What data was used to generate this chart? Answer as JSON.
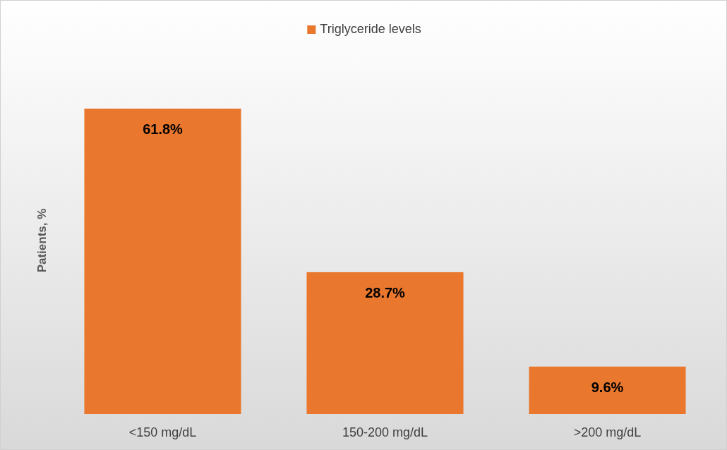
{
  "chart_data": {
    "type": "bar",
    "ylabel": "Patients, %",
    "categories": [
      "<150 mg/dL",
      "150-200 mg/dL",
      ">200 mg/dL"
    ],
    "series": [
      {
        "name": "Triglyceride levels",
        "color": "#e9772e",
        "values": [
          61.8,
          28.7,
          9.6
        ],
        "value_labels": [
          "61.8%",
          "28.7%",
          "9.6%"
        ]
      }
    ],
    "legend": "top"
  }
}
